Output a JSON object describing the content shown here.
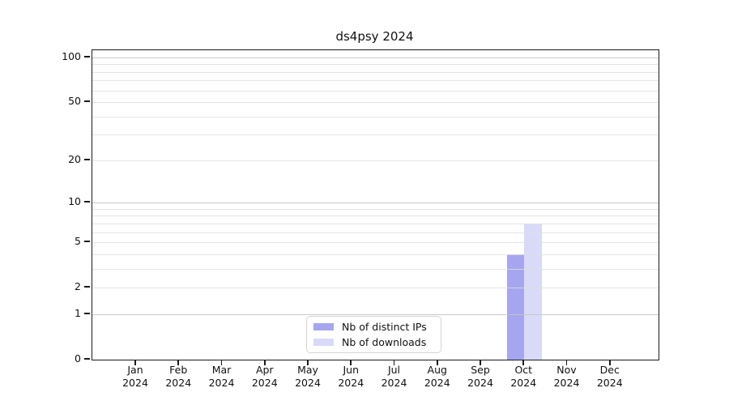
{
  "chart_data": {
    "type": "bar",
    "title": "ds4psy 2024",
    "x_categories": [
      "Jan",
      "Feb",
      "Mar",
      "Apr",
      "May",
      "Jun",
      "Jul",
      "Aug",
      "Sep",
      "Oct",
      "Nov",
      "Dec"
    ],
    "x_year": "2024",
    "series": [
      {
        "name": "Nb of distinct IPs",
        "color": "#a6a6f0",
        "values": [
          0,
          0,
          0,
          0,
          0,
          0,
          0,
          0,
          0,
          4,
          0,
          0
        ]
      },
      {
        "name": "Nb of downloads",
        "color": "#d9d9f8",
        "values": [
          0,
          0,
          0,
          0,
          0,
          0,
          0,
          0,
          0,
          7,
          0,
          0
        ]
      }
    ],
    "y_scale": "log10(1+x)",
    "ylim": [
      0,
      100
    ],
    "y_tick_labels": [
      0,
      1,
      2,
      5,
      10,
      20,
      50,
      100
    ],
    "y_gridlines_major": [
      1,
      10,
      100
    ],
    "y_gridlines_minor": [
      2,
      3,
      4,
      5,
      6,
      7,
      8,
      9,
      20,
      30,
      40,
      50,
      60,
      70,
      80,
      90
    ],
    "grid": true,
    "legend_position": "bottom-center"
  },
  "legend": {
    "items": [
      {
        "label": "Nb of distinct IPs",
        "color": "#a6a6f0"
      },
      {
        "label": "Nb of downloads",
        "color": "#d9d9f8"
      }
    ]
  },
  "colors": {
    "frame": "#1a1a1a",
    "gridline_minor": "#e4e4e4",
    "gridline_major": "#c6c6c6",
    "background": "#ffffff"
  }
}
